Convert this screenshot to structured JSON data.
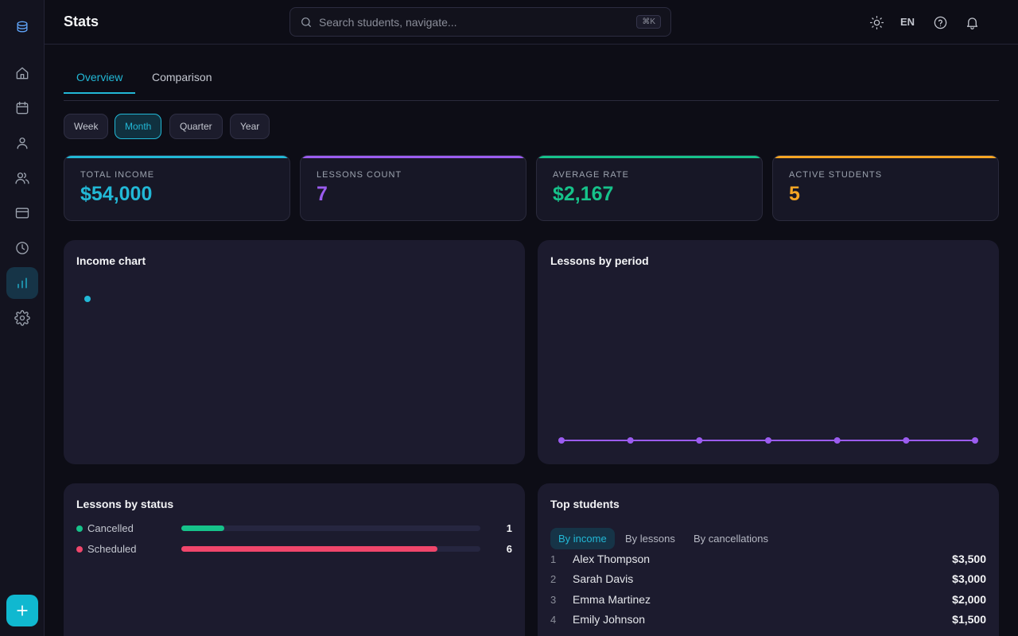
{
  "topbar": {
    "title": "Stats",
    "search_placeholder": "Search students, navigate...",
    "shortcut": "⌘K",
    "language": "EN"
  },
  "tabs": [
    {
      "label": "Overview",
      "active": true
    },
    {
      "label": "Comparison",
      "active": false
    }
  ],
  "periods": [
    {
      "label": "Week",
      "active": false
    },
    {
      "label": "Month",
      "active": true
    },
    {
      "label": "Quarter",
      "active": false
    },
    {
      "label": "Year",
      "active": false
    }
  ],
  "stats": [
    {
      "label": "TOTAL INCOME",
      "value": "$54,000",
      "color": "#22b8d6"
    },
    {
      "label": "LESSONS COUNT",
      "value": "7",
      "color": "#9b5cf0"
    },
    {
      "label": "AVERAGE RATE",
      "value": "$2,167",
      "color": "#16c28a"
    },
    {
      "label": "ACTIVE STUDENTS",
      "value": "5",
      "color": "#f5a524"
    }
  ],
  "income_chart": {
    "title": "Income chart"
  },
  "lessons_chart": {
    "title": "Lessons by period"
  },
  "chart_data": [
    {
      "type": "scatter",
      "title": "Income chart",
      "series": [
        {
          "values": [
            1
          ]
        }
      ],
      "color": "#22b8d6"
    },
    {
      "type": "line",
      "title": "Lessons by period",
      "series": [
        {
          "values": [
            0,
            0,
            0,
            0,
            0,
            0,
            0
          ]
        }
      ],
      "color": "#9b5cf0"
    }
  ],
  "lessons_by_status": {
    "title": "Lessons by status",
    "items": [
      {
        "label": "Cancelled",
        "count": "1",
        "fraction": 0.143,
        "color": "#16c28a"
      },
      {
        "label": "Scheduled",
        "count": "6",
        "fraction": 0.857,
        "color": "#f0466b"
      }
    ]
  },
  "top_students": {
    "title": "Top students",
    "tabs": [
      {
        "label": "By income",
        "active": true
      },
      {
        "label": "By lessons",
        "active": false
      },
      {
        "label": "By cancellations",
        "active": false
      }
    ],
    "rows": [
      {
        "rank": "1",
        "name": "Alex Thompson",
        "amount": "$3,500"
      },
      {
        "rank": "2",
        "name": "Sarah Davis",
        "amount": "$3,000"
      },
      {
        "rank": "3",
        "name": "Emma Martinez",
        "amount": "$2,000"
      },
      {
        "rank": "4",
        "name": "Emily Johnson",
        "amount": "$1,500"
      }
    ]
  },
  "icons": {
    "sidebar": [
      "logo-icon",
      "home-icon",
      "calendar-icon",
      "user-icon",
      "users-icon",
      "credit-card-icon",
      "clock-icon",
      "bar-chart-icon",
      "gear-icon"
    ],
    "fab": "plus-icon",
    "topbar": [
      "sun-icon",
      "help-icon",
      "bell-icon"
    ]
  }
}
